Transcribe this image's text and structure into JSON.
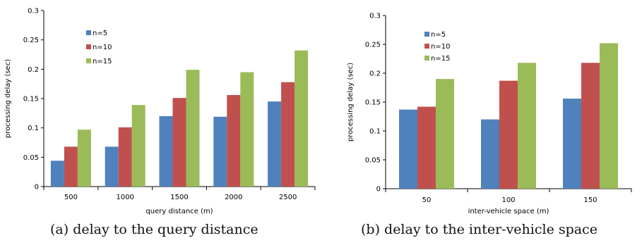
{
  "colors": {
    "n5": "#4F81BD",
    "n10": "#C0504D",
    "n15": "#9BBB59"
  },
  "captions": {
    "a": "(a) delay to the query distance",
    "b": "(b) delay to the inter-vehicle space"
  },
  "chart_data": [
    {
      "type": "bar",
      "xlabel": "query distance (m)",
      "ylabel": "processing delay (sec)",
      "ylim": [
        0,
        0.3
      ],
      "yticks": [
        "0",
        "0.05",
        "0.1",
        "0.15",
        "0.2",
        "0.25",
        "0.3"
      ],
      "legend_position": "top-left",
      "categories": [
        "500",
        "1000",
        "1500",
        "2000",
        "2500"
      ],
      "series": [
        {
          "name": "n=5",
          "color_key": "n5",
          "values": [
            0.044,
            0.068,
            0.12,
            0.119,
            0.145
          ]
        },
        {
          "name": "n=10",
          "color_key": "n10",
          "values": [
            0.068,
            0.101,
            0.151,
            0.156,
            0.178
          ]
        },
        {
          "name": "n=15",
          "color_key": "n15",
          "values": [
            0.097,
            0.139,
            0.199,
            0.195,
            0.232
          ]
        }
      ]
    },
    {
      "type": "bar",
      "xlabel": "inter-vehicle space (m)",
      "ylabel": "processing delay (sec)",
      "ylim": [
        0,
        0.3
      ],
      "yticks": [
        "0",
        "0.05",
        "0.1",
        "0.15",
        "0.2",
        "0.25",
        "0.3"
      ],
      "legend_position": "top-left",
      "categories": [
        "50",
        "100",
        "150"
      ],
      "series": [
        {
          "name": "n=5",
          "color_key": "n5",
          "values": [
            0.137,
            0.12,
            0.156
          ]
        },
        {
          "name": "n=10",
          "color_key": "n10",
          "values": [
            0.142,
            0.187,
            0.218
          ]
        },
        {
          "name": "n=15",
          "color_key": "n15",
          "values": [
            0.19,
            0.218,
            0.252
          ]
        }
      ]
    }
  ]
}
